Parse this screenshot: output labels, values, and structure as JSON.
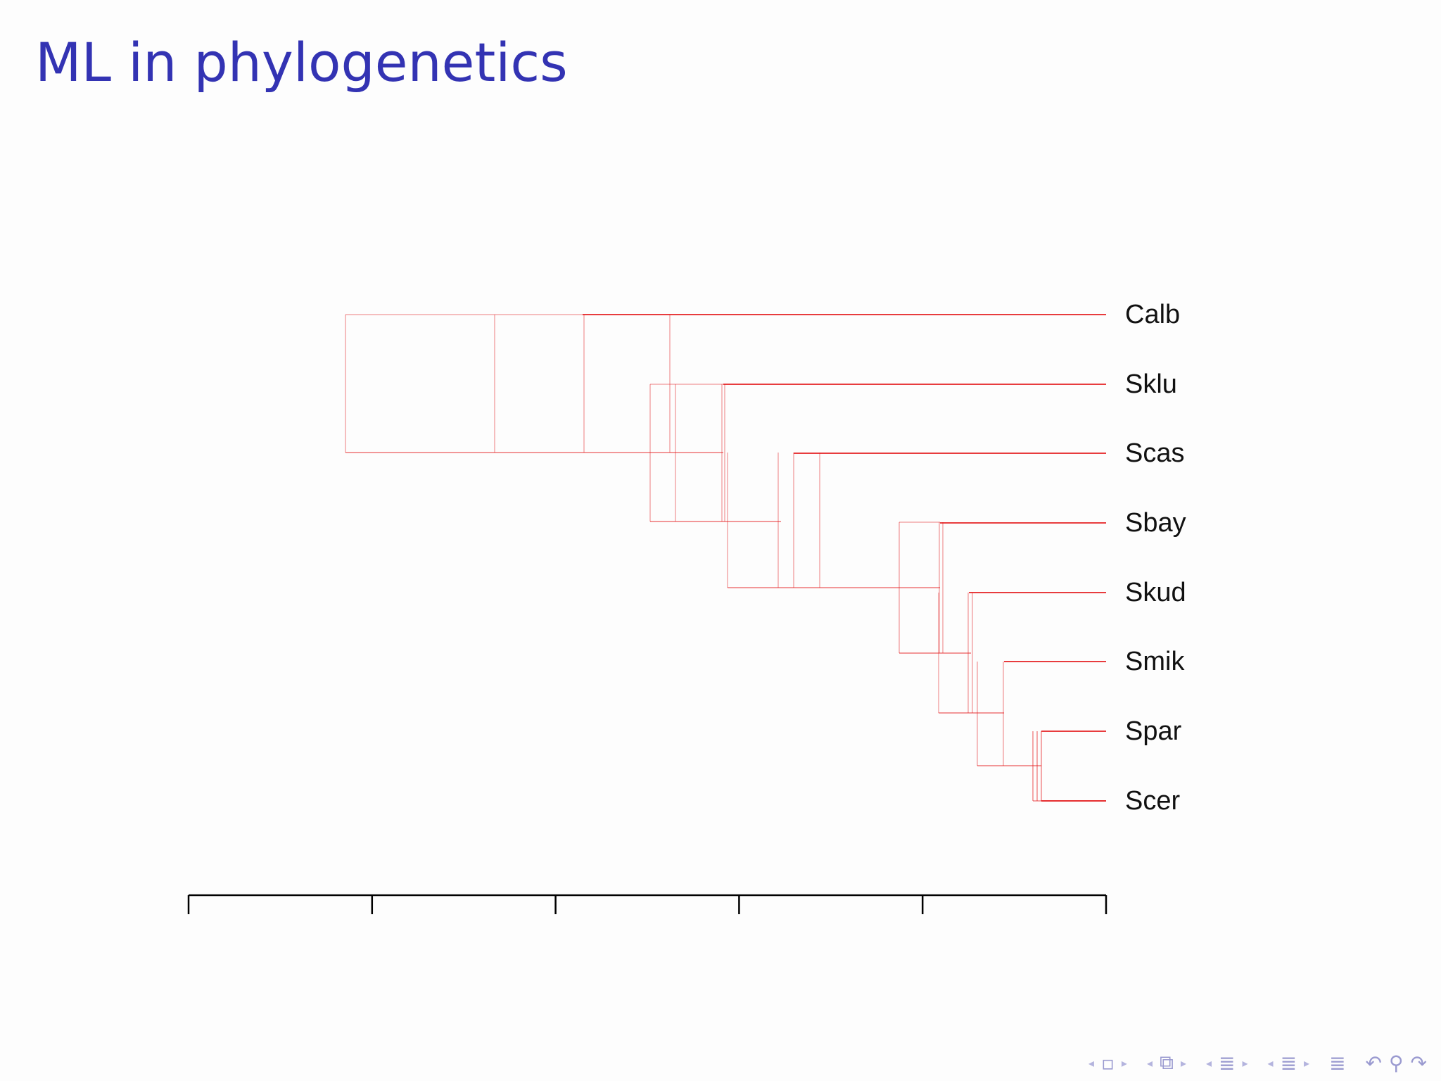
{
  "slide": {
    "title": "ML in phylogenetics"
  },
  "tree": {
    "leaves": [
      "Calb",
      "Sklu",
      "Scas",
      "Sbay",
      "Skud",
      "Smik",
      "Spar",
      "Scer"
    ],
    "color": "#e41a1c",
    "axis_color": "#000000",
    "axis_ticks": 6
  },
  "nav": {
    "icons": [
      "nav-frame-icon",
      "nav-subsection-icon",
      "nav-section-icon",
      "nav-part-icon",
      "nav-toc-icon",
      "nav-search-icon"
    ]
  }
}
